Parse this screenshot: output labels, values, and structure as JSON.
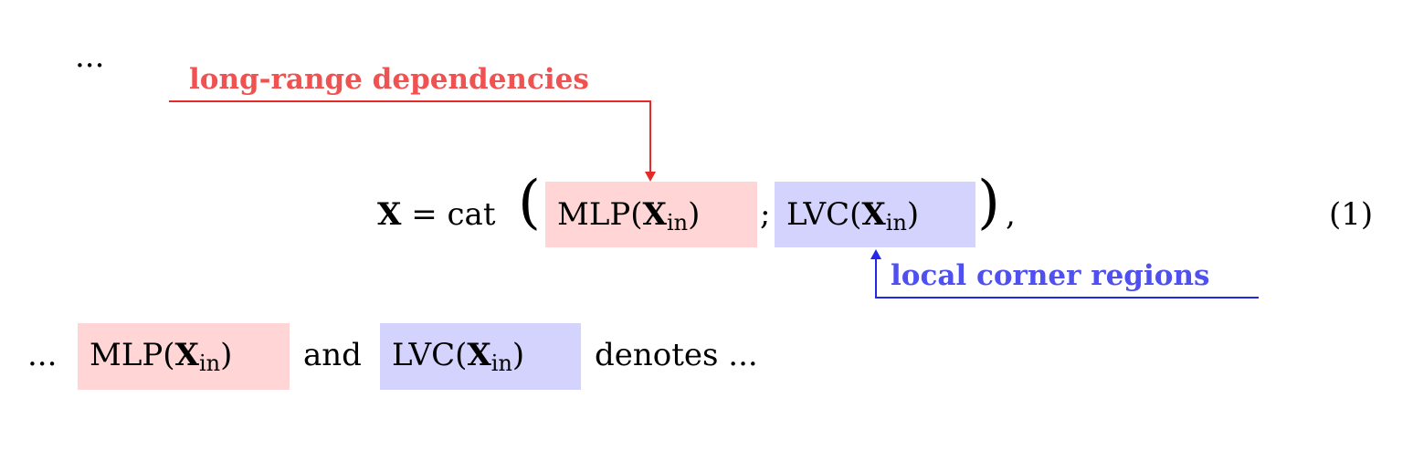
{
  "colors": {
    "red_accent": "#e52a2a",
    "red_text": "#f05252",
    "red_highlight": "#ffd5d5",
    "blue_accent": "#2626e6",
    "blue_text": "#5050f0",
    "blue_highlight": "#d3d3fe"
  },
  "top_ellipsis": "...",
  "annotations": {
    "red_label": "long-range dependencies",
    "blue_label": "local corner regions"
  },
  "equation": {
    "lhs": "X",
    "equals": "=",
    "func": "cat",
    "open_paren": "(",
    "close_paren": ")",
    "mlp": "MLP",
    "lvc": "LVC",
    "arg_open": "(",
    "arg_var": "X",
    "arg_sub": "in",
    "arg_close": ")",
    "separator": ";",
    "trailing_comma": ",",
    "number": "(1)"
  },
  "bottom_line": {
    "lead_ellipsis": "...",
    "and": "and",
    "tail": "denotes ..."
  }
}
